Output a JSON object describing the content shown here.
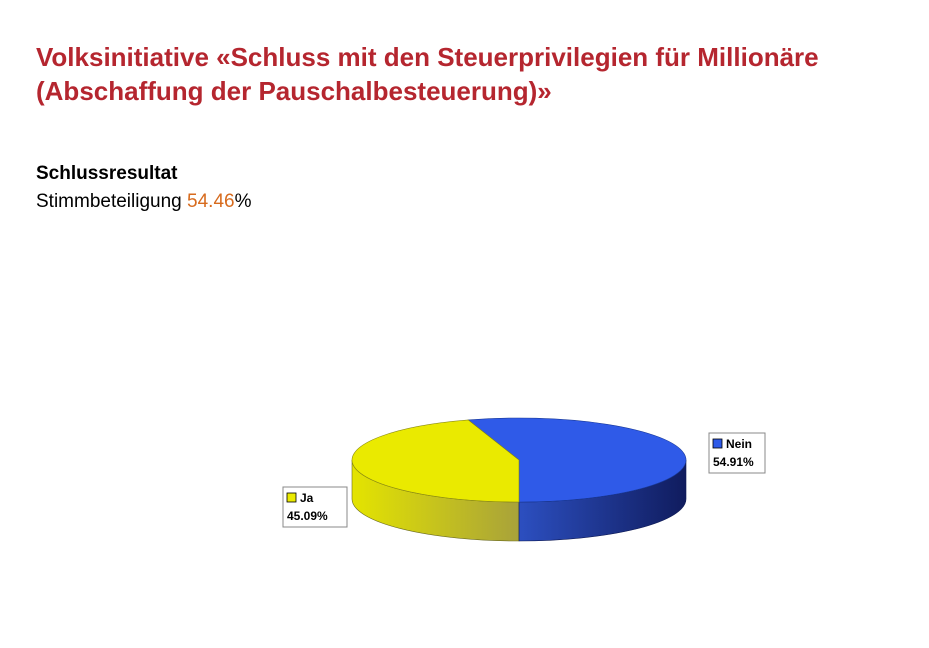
{
  "header": {
    "title_line1": "Volksinitiative «Schluss mit den Steuerprivilegien für Millionäre",
    "title_line2": "(Abschaffung der Pauschalbesteuerung)»"
  },
  "result": {
    "heading": "Schlussresultat",
    "turnout_label": "Stimmbeteiligung ",
    "turnout_value": "54.46",
    "turnout_unit": "%"
  },
  "colors": {
    "title": "#b5262f",
    "turnout_value": "#d76b1e"
  },
  "chart_data": {
    "type": "pie",
    "style": "3d",
    "categories": [
      "Nein",
      "Ja"
    ],
    "values": [
      54.91,
      45.09
    ],
    "value_labels": [
      "54.91%",
      "45.09%"
    ],
    "colors": [
      "#2f5ae8",
      "#eaea00"
    ],
    "side_colors": [
      "#1b2f8a",
      "#bcbc00"
    ],
    "legend": "labels next to slices"
  }
}
